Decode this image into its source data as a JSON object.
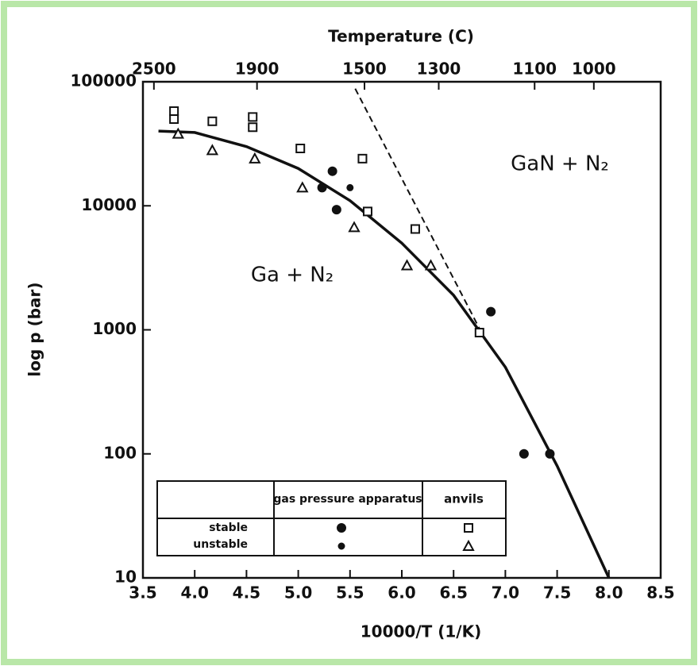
{
  "chart_data": {
    "type": "scatter",
    "title": "Temperature (C)",
    "x_label": "10000/T (1/K)",
    "y_label": "log p (bar)",
    "xlim": [
      3.5,
      8.5
    ],
    "xticks": [
      3.5,
      {
        "value": 4,
        "label": "4.0"
      },
      4.5,
      {
        "value": 5,
        "label": "5.0"
      },
      5.5,
      {
        "value": 6,
        "label": "6.0"
      },
      6.5,
      {
        "value": 7,
        "label": "7.0"
      },
      7.5,
      {
        "value": 8,
        "label": "8.0"
      },
      8.5
    ],
    "x2ticks": [
      2500,
      1900,
      1500,
      1300,
      1100,
      1000
    ],
    "ylim": [
      10,
      100000
    ],
    "yticks": [
      10,
      100,
      1000,
      10000,
      100000
    ],
    "log_y": true,
    "color": "#111111",
    "annotations": [
      "GaN + N₂",
      "Ga + N₂"
    ],
    "legend_table": {
      "columns": [
        "gas pressure apparatus",
        "anvils"
      ],
      "rows": [
        "stable",
        "unstable"
      ]
    },
    "series": [
      {
        "marker": "dot",
        "x": [
          5.33,
          5.23,
          5.37,
          6.86,
          7.18,
          7.43
        ],
        "values": [
          19000,
          14000,
          9300,
          1400,
          100,
          100
        ]
      },
      {
        "marker": "small-dot",
        "x": [
          5.5
        ],
        "values": [
          14000
        ]
      },
      {
        "marker": "square",
        "x": [
          3.8,
          3.8,
          4.17,
          4.56,
          4.56,
          5.02,
          5.62,
          5.67,
          6.13,
          6.75
        ],
        "values": [
          58000,
          50000,
          48000,
          52000,
          43000,
          29000,
          24000,
          9000,
          6500,
          950
        ]
      },
      {
        "marker": "triangle",
        "x": [
          3.84,
          4.17,
          4.58,
          5.04,
          5.54,
          6.05,
          6.28
        ],
        "values": [
          38000,
          28000,
          24000,
          14000,
          6700,
          3300,
          3300
        ]
      }
    ],
    "curves": [
      {
        "style": "solid",
        "x": [
          3.65,
          4.0,
          4.5,
          5.0,
          5.5,
          6.0,
          6.5,
          7.0,
          7.5,
          8.0
        ],
        "values": [
          40000,
          39000,
          30000,
          20000,
          11000,
          5000,
          1900,
          500,
          80,
          10
        ]
      },
      {
        "style": "dashed",
        "x": [
          5.55,
          6.77
        ],
        "values": [
          88000,
          950
        ]
      }
    ]
  }
}
